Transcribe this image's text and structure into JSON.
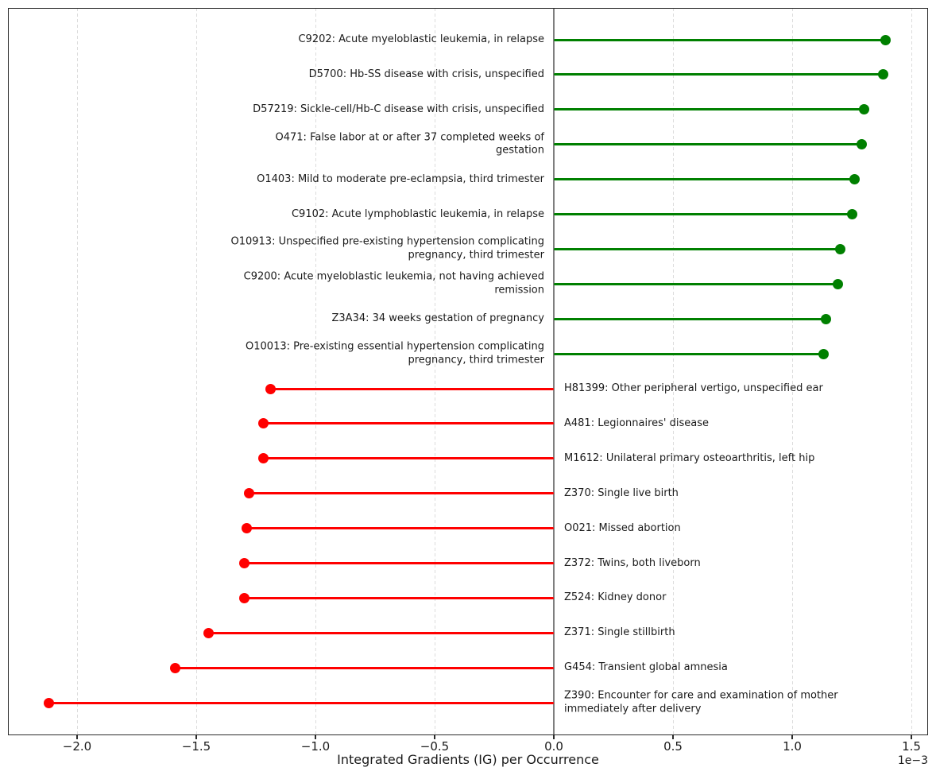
{
  "chart_data": {
    "type": "bar",
    "variant": "horizontal-lollipop",
    "title": "",
    "xlabel": "Integrated Gradients (IG) per Occurrence",
    "offset_label": "1e−3",
    "value_unit": "1e-3",
    "xlim_1e3": [
      -2.29,
      1.57
    ],
    "x_ticks_1e3": [
      -2.0,
      -1.5,
      -1.0,
      -0.5,
      0.0,
      0.5,
      1.0,
      1.5
    ],
    "x_tick_labels": [
      "−2.0",
      "−1.5",
      "−1.0",
      "−0.5",
      "0.0",
      "0.5",
      "1.0",
      "1.5"
    ],
    "grid": "vertical-dashed",
    "legend": "none",
    "colors": {
      "positive": "#008000",
      "negative": "#ff0000",
      "grid": "#dcdcdc",
      "zero_line": "#7f7f7f",
      "spine": "#2b2b2b",
      "text": "#1a1a1a"
    },
    "items": [
      {
        "code": "C9202",
        "value_1e3": 1.39,
        "lines": [
          "C9202: Acute myeloblastic leukemia, in relapse"
        ]
      },
      {
        "code": "D5700",
        "value_1e3": 1.38,
        "lines": [
          "D5700: Hb-SS disease with crisis, unspecified"
        ]
      },
      {
        "code": "D57219",
        "value_1e3": 1.3,
        "lines": [
          "D57219: Sickle-cell/Hb-C disease with crisis, unspecified"
        ]
      },
      {
        "code": "O471",
        "value_1e3": 1.29,
        "lines": [
          "O471: False labor at or after 37 completed weeks of",
          "gestation"
        ]
      },
      {
        "code": "O1403",
        "value_1e3": 1.26,
        "lines": [
          "O1403: Mild to moderate pre-eclampsia, third trimester"
        ]
      },
      {
        "code": "C9102",
        "value_1e3": 1.25,
        "lines": [
          "C9102: Acute lymphoblastic leukemia, in relapse"
        ]
      },
      {
        "code": "O10913",
        "value_1e3": 1.2,
        "lines": [
          "O10913: Unspecified pre-existing hypertension complicating",
          "pregnancy, third trimester"
        ]
      },
      {
        "code": "C9200",
        "value_1e3": 1.19,
        "lines": [
          "C9200: Acute myeloblastic leukemia, not having achieved",
          "remission"
        ]
      },
      {
        "code": "Z3A34",
        "value_1e3": 1.14,
        "lines": [
          "Z3A34: 34 weeks gestation of pregnancy"
        ]
      },
      {
        "code": "O10013",
        "value_1e3": 1.13,
        "lines": [
          "O10013: Pre-existing essential hypertension complicating",
          "pregnancy, third trimester"
        ]
      },
      {
        "code": "H81399",
        "value_1e3": -1.19,
        "lines": [
          "H81399: Other peripheral vertigo, unspecified ear"
        ]
      },
      {
        "code": "A481",
        "value_1e3": -1.22,
        "lines": [
          "A481: Legionnaires' disease"
        ]
      },
      {
        "code": "M1612",
        "value_1e3": -1.22,
        "lines": [
          "M1612: Unilateral primary osteoarthritis, left hip"
        ]
      },
      {
        "code": "Z370",
        "value_1e3": -1.28,
        "lines": [
          "Z370: Single live birth"
        ]
      },
      {
        "code": "O021",
        "value_1e3": -1.29,
        "lines": [
          "O021: Missed abortion"
        ]
      },
      {
        "code": "Z372",
        "value_1e3": -1.3,
        "lines": [
          "Z372: Twins, both liveborn"
        ]
      },
      {
        "code": "Z524",
        "value_1e3": -1.3,
        "lines": [
          "Z524: Kidney donor"
        ]
      },
      {
        "code": "Z371",
        "value_1e3": -1.45,
        "lines": [
          "Z371: Single stillbirth"
        ]
      },
      {
        "code": "G454",
        "value_1e3": -1.59,
        "lines": [
          "G454: Transient global amnesia"
        ]
      },
      {
        "code": "Z390",
        "value_1e3": -2.12,
        "lines": [
          "Z390: Encounter for care and examination of mother",
          "immediately after delivery"
        ]
      }
    ]
  }
}
